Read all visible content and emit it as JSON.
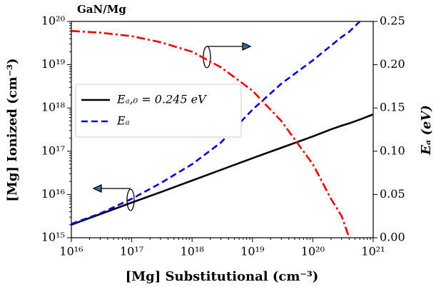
{
  "chart_data": {
    "type": "line",
    "title": "GaN/Mg",
    "xlabel": "[Mg] Substitutional (cm⁻³)",
    "ylabel": "[Mg] Ionized (cm⁻³)",
    "y2label": "Eₐ (eV)",
    "xscale": "log",
    "yscale": "log",
    "x": [
      1e+16,
      3e+16,
      1e+17,
      3e+17,
      1e+18,
      3e+18,
      1e+19,
      3e+19,
      1e+20,
      2e+20,
      3e+20,
      4e+20,
      6e+20,
      1e+21
    ],
    "series": [
      {
        "name": "Eₐ,₀ = 0.245 eV",
        "color": "#000000",
        "linestyle": "solid",
        "values": [
          2000000000000000.0,
          3500000000000000.0,
          6500000000000000.0,
          1.13e+16,
          2.1e+16,
          3.7e+16,
          6.9e+16,
          1.2e+17,
          2.2e+17,
          3.2e+17,
          3.9e+17,
          4.4e+17,
          5.4e+17,
          7.1e+17
        ]
      },
      {
        "name": "Eₐ",
        "color": "#0000dd",
        "linestyle": "dashed",
        "axis": "y2",
        "values": [
          0.016,
          0.028,
          0.045,
          0.063,
          0.085,
          0.11,
          0.148,
          0.178,
          0.205,
          0.222,
          0.232,
          0.238,
          0.25,
          null
        ]
      },
      {
        "color": "#ee0000",
        "linestyle": "dashdot",
        "axis": "y2",
        "values": [
          0.239,
          0.237,
          0.233,
          0.226,
          0.215,
          0.197,
          0.17,
          0.135,
          0.085,
          0.045,
          0.025,
          0.0,
          null,
          null
        ]
      }
    ],
    "xlim": [
      1e+16,
      1e+21
    ],
    "xticks": [
      {
        "value": 1e+16,
        "label": "10¹⁶"
      },
      {
        "value": 1e+17,
        "label": "10¹⁷"
      },
      {
        "value": 1e+18,
        "label": "10¹⁸"
      },
      {
        "value": 1e+19,
        "label": "10¹⁹"
      },
      {
        "value": 1e+20,
        "label": "10²⁰"
      },
      {
        "value": 1e+21,
        "label": "10²¹"
      }
    ],
    "ylim": [
      1000000000000000.0,
      1e+20
    ],
    "yticks": [
      {
        "value": 1000000000000000.0,
        "label": "10¹⁵"
      },
      {
        "value": 1e+16,
        "label": "10¹⁶"
      },
      {
        "value": 1e+17,
        "label": "10¹⁷"
      },
      {
        "value": 1e+18,
        "label": "10¹⁸"
      },
      {
        "value": 1e+19,
        "label": "10¹⁹"
      },
      {
        "value": 1e+20,
        "label": "10²⁰"
      }
    ],
    "y2lim": [
      0,
      0.25
    ],
    "y2ticks": [
      {
        "value": 0,
        "label": "0.00"
      },
      {
        "value": 0.05,
        "label": "0.05"
      },
      {
        "value": 0.1,
        "label": "0.10"
      },
      {
        "value": 0.15,
        "label": "0.15"
      },
      {
        "value": 0.2,
        "label": "0.20"
      },
      {
        "value": 0.25,
        "label": "0.25"
      }
    ],
    "legend": "upper left"
  }
}
